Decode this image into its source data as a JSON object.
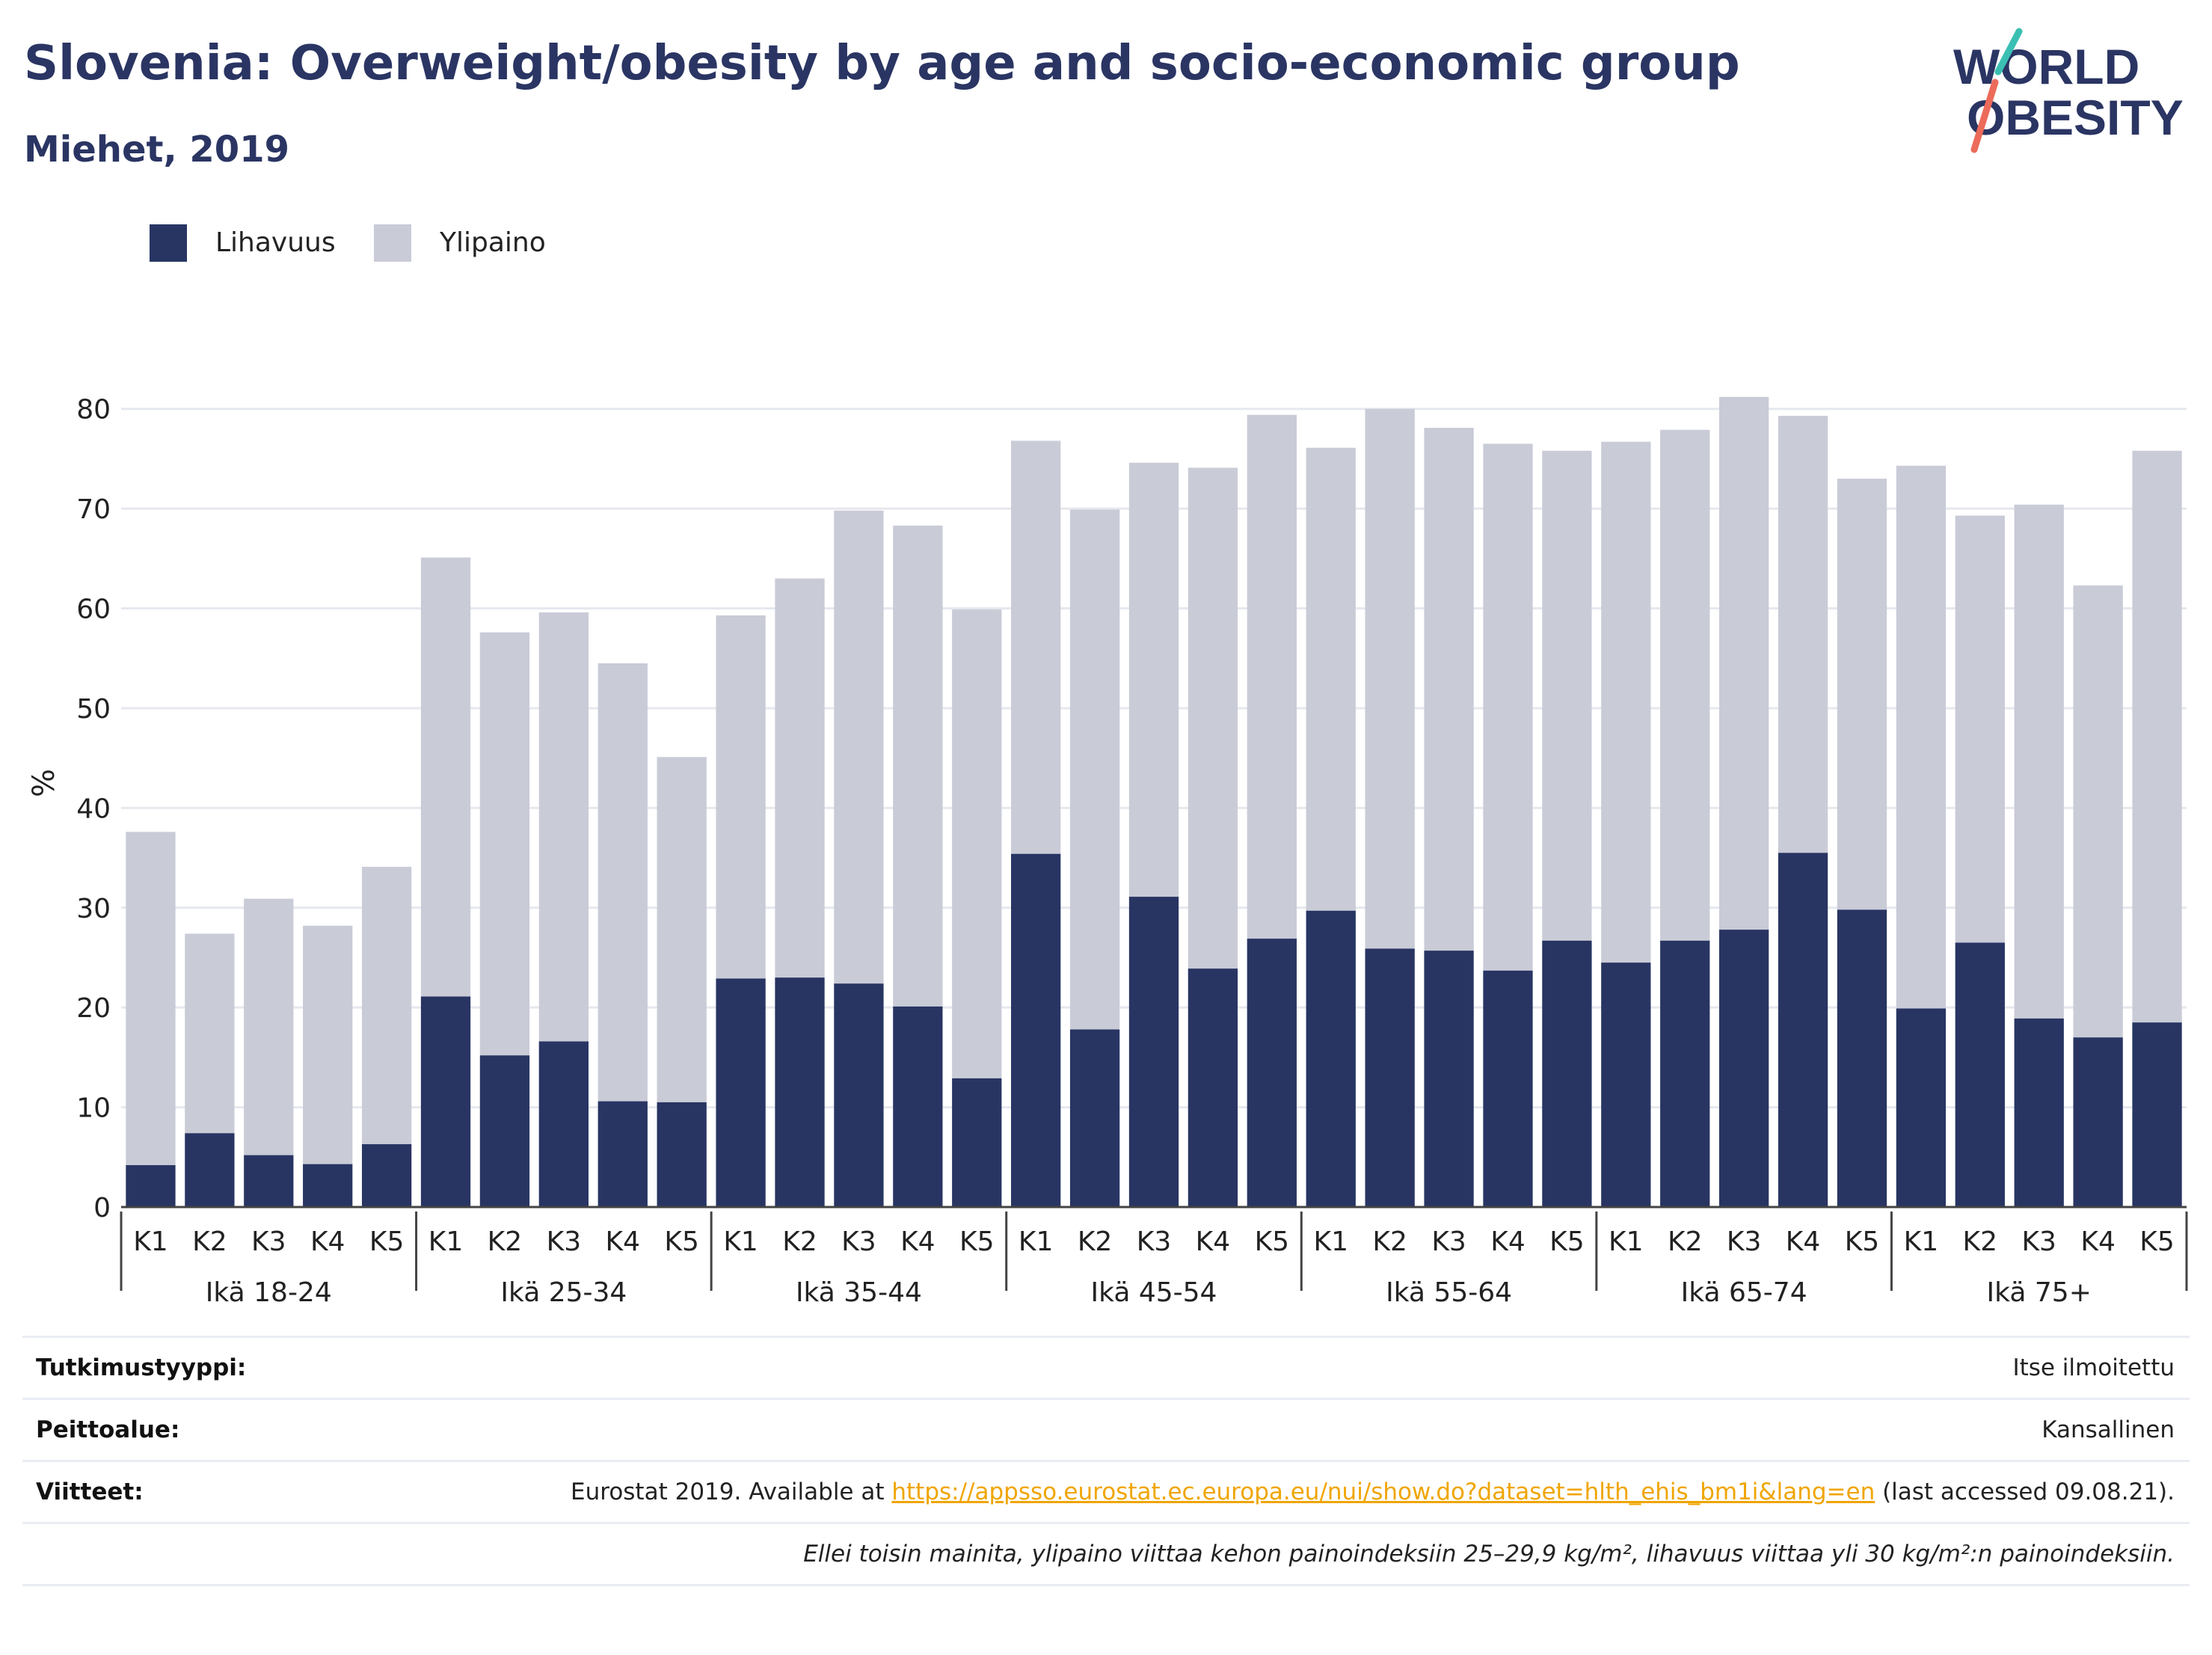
{
  "title": "Slovenia: Overweight/obesity by age and socio-economic group",
  "subtitle": "Miehet, 2019",
  "logo": {
    "line1": "WORLD",
    "line2": "OBESITY"
  },
  "legend": [
    {
      "label": "Lihavuus",
      "color": "#283563"
    },
    {
      "label": "Ylipaino",
      "color": "#c9cbd7"
    }
  ],
  "chart_data": {
    "type": "bar",
    "stacked": true,
    "ylabel": "%",
    "ylim": [
      0,
      85
    ],
    "yticks": [
      0,
      10,
      20,
      30,
      40,
      50,
      60,
      70,
      80
    ],
    "grid": true,
    "legend_position": "top-left",
    "groups": [
      {
        "label": "Ikä 18-24",
        "categories": [
          "K1",
          "K2",
          "K3",
          "K4",
          "K5"
        ],
        "obesity": [
          4.2,
          7.4,
          5.2,
          4.3,
          6.3
        ],
        "total": [
          37.6,
          27.4,
          30.9,
          28.2,
          34.1
        ]
      },
      {
        "label": "Ikä 25-34",
        "categories": [
          "K1",
          "K2",
          "K3",
          "K4",
          "K5"
        ],
        "obesity": [
          21.1,
          15.2,
          16.6,
          10.6,
          10.5
        ],
        "total": [
          65.1,
          57.6,
          59.6,
          54.5,
          45.1
        ]
      },
      {
        "label": "Ikä 35-44",
        "categories": [
          "K1",
          "K2",
          "K3",
          "K4",
          "K5"
        ],
        "obesity": [
          22.9,
          23.0,
          22.4,
          20.1,
          12.9
        ],
        "total": [
          59.3,
          63.0,
          69.8,
          68.3,
          59.9
        ]
      },
      {
        "label": "Ikä 45-54",
        "categories": [
          "K1",
          "K2",
          "K3",
          "K4",
          "K5"
        ],
        "obesity": [
          35.4,
          17.8,
          31.1,
          23.9,
          26.9
        ],
        "total": [
          76.8,
          69.9,
          74.6,
          74.1,
          79.4
        ]
      },
      {
        "label": "Ikä 55-64",
        "categories": [
          "K1",
          "K2",
          "K3",
          "K4",
          "K5"
        ],
        "obesity": [
          29.7,
          25.9,
          25.7,
          23.7,
          26.7
        ],
        "total": [
          76.1,
          80.0,
          78.1,
          76.5,
          75.8
        ]
      },
      {
        "label": "Ikä 65-74",
        "categories": [
          "K1",
          "K2",
          "K3",
          "K4",
          "K5"
        ],
        "obesity": [
          24.5,
          26.7,
          27.8,
          35.5,
          29.8
        ],
        "total": [
          76.7,
          77.9,
          81.2,
          79.3,
          73.0
        ]
      },
      {
        "label": "Ikä 75+",
        "categories": [
          "K1",
          "K2",
          "K3",
          "K4",
          "K5"
        ],
        "obesity": [
          19.9,
          26.5,
          18.9,
          17.0,
          18.5
        ],
        "total": [
          74.3,
          69.3,
          70.4,
          62.3,
          75.8
        ]
      }
    ]
  },
  "meta": {
    "study_type_label": "Tutkimustyyppi:",
    "study_type_value": "Itse ilmoitettu",
    "coverage_label": "Peittoalue:",
    "coverage_value": "Kansallinen",
    "references_label": "Viitteet:",
    "references_prefix": "Eurostat 2019. Available at ",
    "references_link": "https://appsso.eurostat.ec.europa.eu/nui/show.do?dataset=hlth_ehis_bm1i&lang=en",
    "references_suffix": " (last accessed 09.08.21).",
    "note": "Ellei toisin mainita, ylipaino viittaa kehon painoindeksiin 25–29,9 kg/m², lihavuus viittaa yli 30 kg/m²:n painoindeksiin."
  }
}
